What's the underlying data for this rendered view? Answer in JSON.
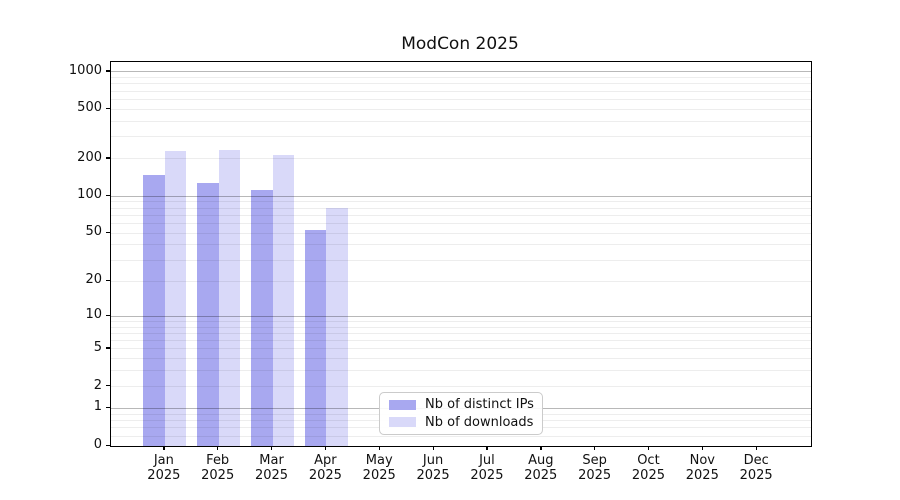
{
  "chart_data": {
    "type": "bar",
    "title": "ModCon 2025",
    "categories": [
      "Jan",
      "Feb",
      "Mar",
      "Apr",
      "May",
      "Jun",
      "Jul",
      "Aug",
      "Sep",
      "Oct",
      "Nov",
      "Dec"
    ],
    "category_year": "2025",
    "series": [
      {
        "name": "Nb of distinct IPs",
        "color": "#a8a8f0",
        "values": [
          147,
          128,
          112,
          53,
          0,
          0,
          0,
          0,
          0,
          0,
          0,
          0
        ]
      },
      {
        "name": "Nb of downloads",
        "color": "#d9d9f9",
        "values": [
          232,
          236,
          213,
          80,
          0,
          0,
          0,
          0,
          0,
          0,
          0,
          0
        ]
      }
    ],
    "xlabel": "",
    "ylabel": "",
    "yscale": "symlog",
    "ylim": [
      0,
      1200
    ],
    "yticks": [
      0,
      1,
      2,
      5,
      10,
      20,
      50,
      100,
      200,
      500,
      1000
    ],
    "major_gridlines": [
      1,
      10,
      100,
      1000
    ],
    "minor_gridlines": [
      0.2,
      0.4,
      0.6,
      0.8,
      2,
      3,
      4,
      5,
      6,
      7,
      8,
      9,
      20,
      30,
      40,
      50,
      60,
      70,
      80,
      90,
      200,
      300,
      400,
      500,
      600,
      700,
      800,
      900
    ],
    "grid": "horizontal, major and minor, drawn over bars",
    "legend_position": "lower center-left inside axes",
    "colors": {
      "background": "#ffffff",
      "axis": "#000000",
      "text": "#111111",
      "grid_major": "#b5b5b5",
      "grid_minor": "#e9e9e9"
    }
  }
}
